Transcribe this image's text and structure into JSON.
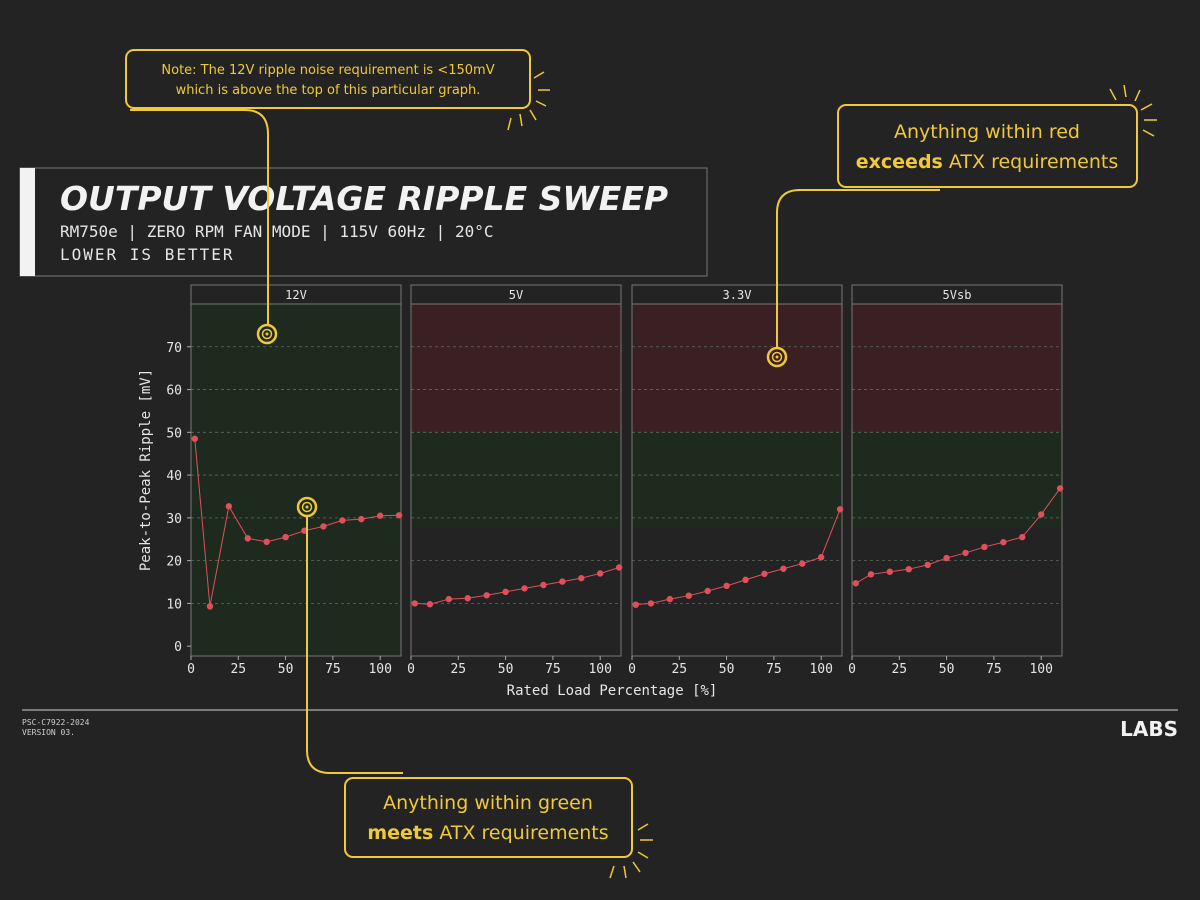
{
  "header": {
    "title": "OUTPUT VOLTAGE RIPPLE SWEEP",
    "subtitle": "RM750e | ZERO RPM FAN MODE | 115V 60Hz | 20°C",
    "note": "LOWER IS BETTER"
  },
  "callouts": {
    "top_note_line1": "Note: The 12V ripple noise requirement is <150mV",
    "top_note_line2": "which is above the top of this particular graph.",
    "red_line1": "Anything within red",
    "red_bold": "exceeds",
    "red_rest": " ATX requirements",
    "green_line1": "Anything within green",
    "green_bold": "meets",
    "green_rest": " ATX requirements"
  },
  "footer": {
    "doc_id": "PSC-C7922-2024",
    "version": "VERSION 03.",
    "logo": "LABS"
  },
  "colors": {
    "background": "#232323",
    "pass_zone": "#1e2a1e",
    "fail_zone": "#3a2023",
    "series": "#e0505a",
    "accent": "#f0c93a"
  },
  "chart_data": {
    "type": "line",
    "title": "OUTPUT VOLTAGE RIPPLE SWEEP",
    "xlabel": "Rated Load Percentage [%]",
    "ylabel": "Peak-to-Peak Ripple [mV]",
    "xlim": [
      0,
      111
    ],
    "ylim": [
      -2.3,
      80
    ],
    "xticks": [
      0,
      25,
      50,
      75,
      100
    ],
    "yticks": [
      0,
      10,
      20,
      30,
      40,
      50,
      60,
      70
    ],
    "grid": true,
    "x": [
      2,
      10,
      20,
      30,
      40,
      50,
      60,
      70,
      80,
      90,
      100,
      110
    ],
    "panels": [
      {
        "name": "12V",
        "limit": 150,
        "values": [
          48.5,
          9.3,
          32.7,
          25.2,
          24.4,
          25.5,
          27.0,
          28.0,
          29.4,
          29.7,
          30.5,
          30.6
        ]
      },
      {
        "name": "5V",
        "limit": 50,
        "values": [
          10.0,
          9.8,
          11.0,
          11.2,
          11.9,
          12.7,
          13.5,
          14.3,
          15.1,
          15.9,
          17.0,
          18.4
        ]
      },
      {
        "name": "3.3V",
        "limit": 50,
        "values": [
          9.7,
          10.0,
          11.0,
          11.8,
          12.9,
          14.1,
          15.5,
          16.9,
          18.1,
          19.3,
          20.8,
          32.0
        ]
      },
      {
        "name": "5Vsb",
        "limit": 50,
        "values": [
          14.7,
          16.8,
          17.4,
          18.0,
          19.0,
          20.6,
          21.8,
          23.2,
          24.3,
          25.5,
          30.8,
          36.9
        ]
      }
    ]
  }
}
